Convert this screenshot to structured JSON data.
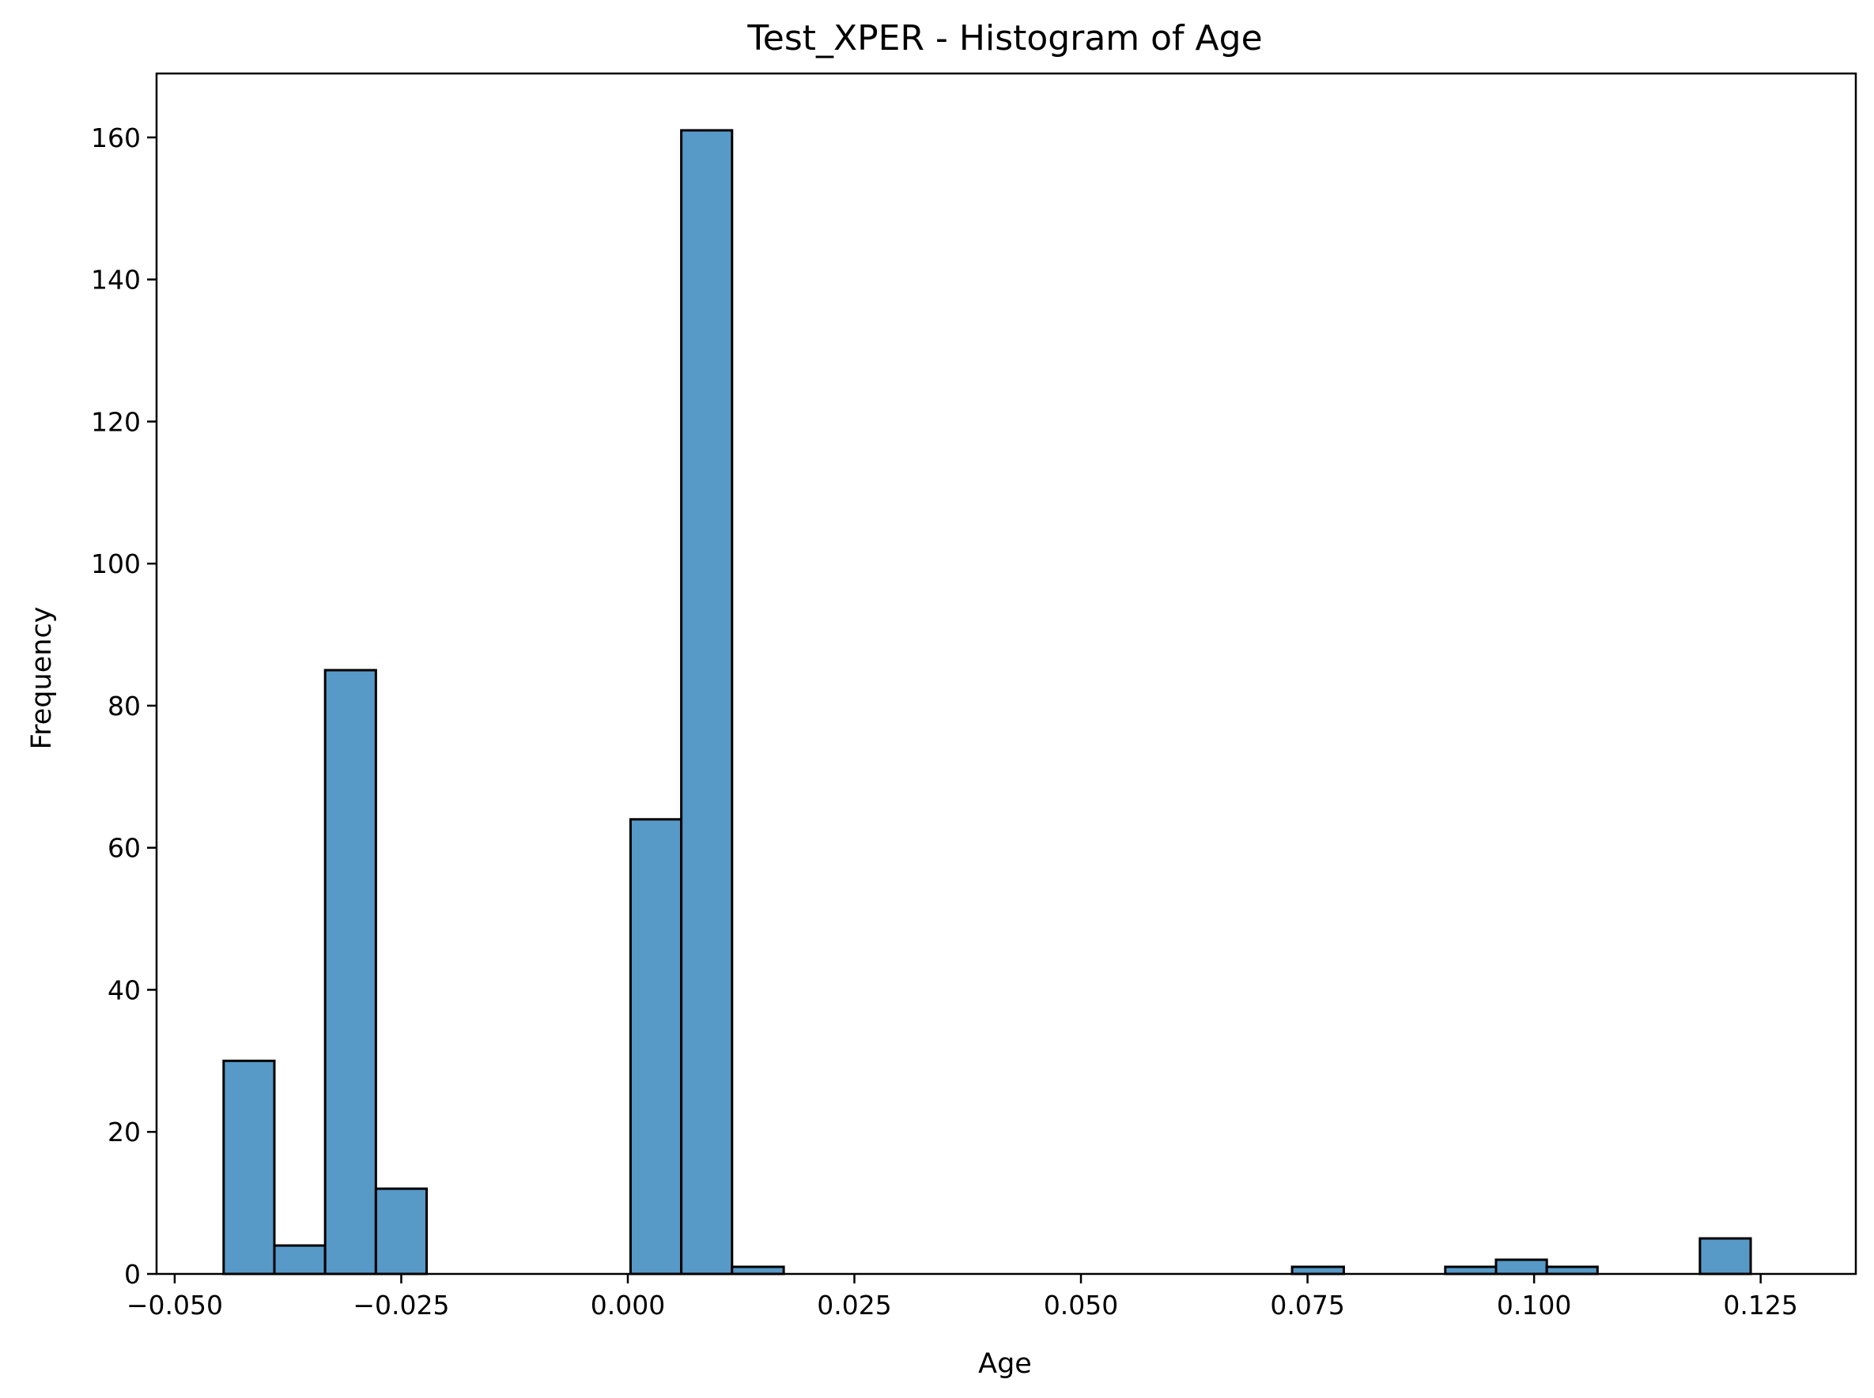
{
  "chart_data": {
    "type": "bar",
    "title": "Test_XPER - Histogram of Age",
    "xlabel": "Age",
    "ylabel": "Frequency",
    "xlim": [
      -0.052,
      0.1355
    ],
    "ylim": [
      0,
      169
    ],
    "xticks": [
      -0.05,
      -0.025,
      0.0,
      0.025,
      0.05,
      0.075,
      0.1,
      0.125
    ],
    "xtick_labels": [
      "−0.050",
      "−0.025",
      "0.000",
      "0.025",
      "0.050",
      "0.075",
      "0.100",
      "0.125"
    ],
    "yticks": [
      0,
      20,
      40,
      60,
      80,
      100,
      120,
      140,
      160
    ],
    "ytick_labels": [
      "0",
      "20",
      "40",
      "60",
      "80",
      "100",
      "120",
      "140",
      "160"
    ],
    "grid": false,
    "bar_color": "#5799c7",
    "edge_color": "#000000",
    "bins": [
      {
        "start": -0.0446,
        "end": -0.039,
        "count": 30
      },
      {
        "start": -0.039,
        "end": -0.0334,
        "count": 4
      },
      {
        "start": -0.0334,
        "end": -0.0278,
        "count": 85
      },
      {
        "start": -0.0278,
        "end": -0.0222,
        "count": 12
      },
      {
        "start": -0.0222,
        "end": -0.0165,
        "count": 0
      },
      {
        "start": -0.0165,
        "end": -0.0109,
        "count": 0
      },
      {
        "start": -0.0109,
        "end": -0.0053,
        "count": 0
      },
      {
        "start": -0.0053,
        "end": 0.0003,
        "count": 0
      },
      {
        "start": 0.0003,
        "end": 0.0059,
        "count": 64
      },
      {
        "start": 0.0059,
        "end": 0.0115,
        "count": 161
      },
      {
        "start": 0.0115,
        "end": 0.0172,
        "count": 1
      },
      {
        "start": 0.0172,
        "end": 0.0228,
        "count": 0
      },
      {
        "start": 0.0228,
        "end": 0.0284,
        "count": 0
      },
      {
        "start": 0.0284,
        "end": 0.034,
        "count": 0
      },
      {
        "start": 0.034,
        "end": 0.0396,
        "count": 0
      },
      {
        "start": 0.0396,
        "end": 0.0452,
        "count": 0
      },
      {
        "start": 0.0452,
        "end": 0.0509,
        "count": 0
      },
      {
        "start": 0.0509,
        "end": 0.0565,
        "count": 0
      },
      {
        "start": 0.0565,
        "end": 0.0621,
        "count": 0
      },
      {
        "start": 0.0621,
        "end": 0.0677,
        "count": 0
      },
      {
        "start": 0.0677,
        "end": 0.0733,
        "count": 0
      },
      {
        "start": 0.0733,
        "end": 0.079,
        "count": 1
      },
      {
        "start": 0.079,
        "end": 0.0846,
        "count": 0
      },
      {
        "start": 0.0846,
        "end": 0.0902,
        "count": 0
      },
      {
        "start": 0.0902,
        "end": 0.0958,
        "count": 1
      },
      {
        "start": 0.0958,
        "end": 0.1014,
        "count": 2
      },
      {
        "start": 0.1014,
        "end": 0.107,
        "count": 1
      },
      {
        "start": 0.107,
        "end": 0.1127,
        "count": 0
      },
      {
        "start": 0.1127,
        "end": 0.1183,
        "count": 0
      },
      {
        "start": 0.1183,
        "end": 0.1239,
        "count": 5
      }
    ]
  }
}
